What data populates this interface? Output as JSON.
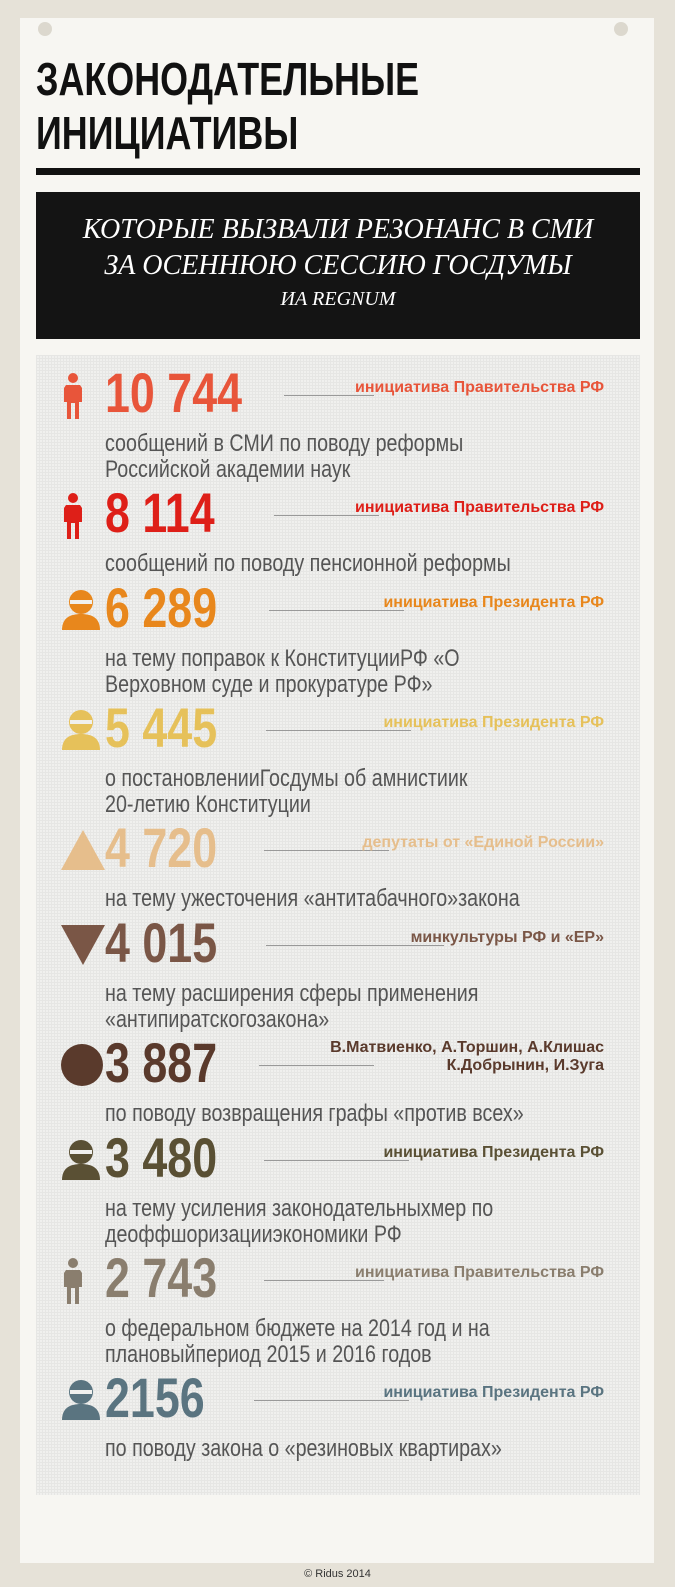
{
  "header": {
    "title_line1": "ЗАКОНОДАТЕЛЬНЫЕ",
    "title_line2": "ИНИЦИАТИВЫ",
    "subtitle_line1": "КОТОРЫЕ ВЫЗВАЛИ РЕЗОНАНС В СМИ",
    "subtitle_line2": "ЗА ОСЕННЮЮ СЕССИЮ ГОСДУМЫ",
    "source": "ИА REGNUM"
  },
  "items": [
    {
      "value": "10 744",
      "label": "инициатива Правительства РФ",
      "desc": [
        "сообщений в СМИ по поводу реформы",
        "Российской академии наук"
      ],
      "color": "#e8553a",
      "icon": "person-icon"
    },
    {
      "value": "8 114",
      "label": "инициатива Правительства РФ",
      "desc": [
        "сообщений по поводу пенсионной реформы"
      ],
      "color": "#de1f18",
      "icon": "person-icon"
    },
    {
      "value": "6 289",
      "label": "инициатива Президента РФ",
      "desc": [
        "на тему поправок к КонституцииРФ «О",
        "Верховном суде и прокуратуре РФ»"
      ],
      "color": "#e8871c",
      "icon": "president-icon"
    },
    {
      "value": "5 445",
      "label": "инициатива Президента РФ",
      "desc": [
        "о постановленииГосдумы об амнистиик",
        "20-летию Конституции"
      ],
      "color": "#e6c15a",
      "icon": "president-icon"
    },
    {
      "value": "4 720",
      "label": "депутаты от «Единой России»",
      "desc": [
        "на тему ужесточения «антитабачного»закона"
      ],
      "color": "#e6be8c",
      "icon": "triangle-up-icon"
    },
    {
      "value": "4 015",
      "label": "минкультуры РФ и «ЕР»",
      "desc": [
        "на тему расширения сферы применения",
        "«антипиратскогозакона»"
      ],
      "color": "#7a5646",
      "icon": "triangle-down-icon"
    },
    {
      "value": "3 887",
      "label": "В.Матвиенко, А.Торшин, А.Клишас\nК.Добрынин, И.Зуга",
      "label_lines": [
        "В.Матвиенко, А.Торшин, А.Клишас",
        "К.Добрынин, И.Зуга"
      ],
      "desc": [
        "по поводу возвращения графы «против всех»"
      ],
      "color": "#5a3a2c",
      "icon": "circle-icon"
    },
    {
      "value": "3 480",
      "label": "инициатива Президента РФ",
      "desc": [
        "на тему усиления законодательныхмер по",
        "деоффшоризацииэкономики РФ"
      ],
      "color": "#5a5034",
      "icon": "president-icon"
    },
    {
      "value": "2 743",
      "label": "инициатива Правительства РФ",
      "desc": [
        "о федеральном бюджете на 2014 год и на",
        "плановыйпериод 2015 и 2016 годов"
      ],
      "color": "#8a7e6e",
      "icon": "person-icon"
    },
    {
      "value": "2156",
      "label": "инициатива Президента РФ",
      "desc": [
        "по поводу закона о «резиновых квартирах»"
      ],
      "color": "#5a7480",
      "icon": "president-icon"
    }
  ],
  "footer": "© Ridus 2014"
}
